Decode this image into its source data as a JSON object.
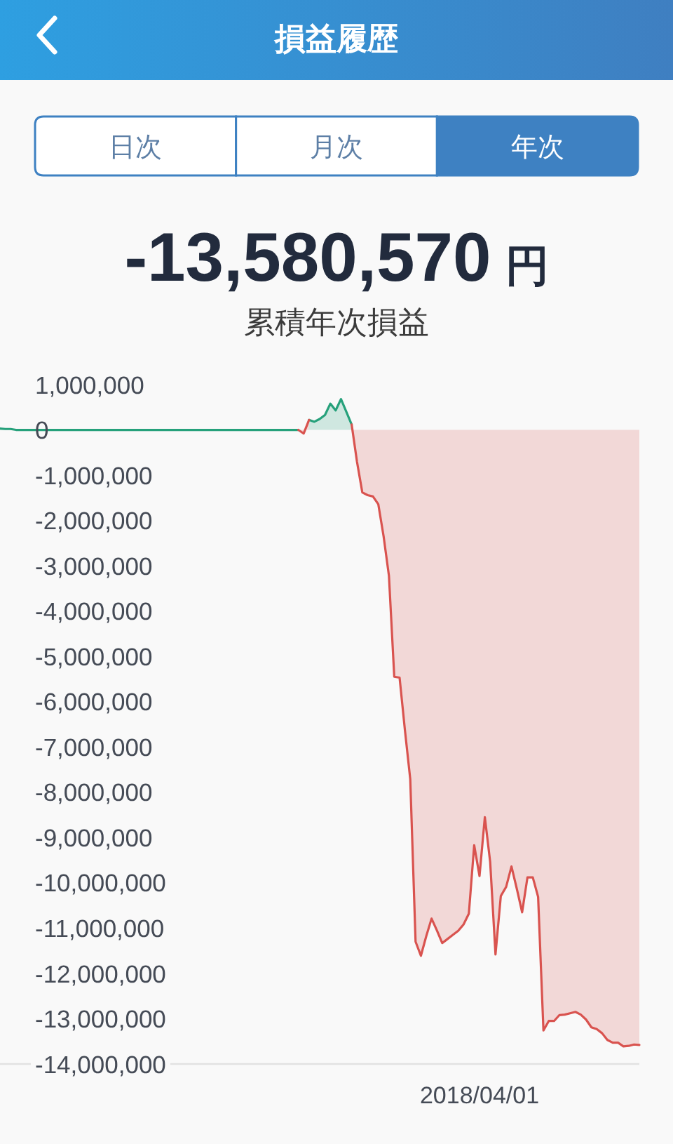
{
  "chart_data": {
    "type": "area",
    "title": "損益履歴",
    "subtitle": "累積年次損益",
    "annotations": [
      "日次",
      "月次",
      "年次",
      "-13,580,570",
      "円"
    ],
    "categories": [
      null,
      null,
      null,
      null,
      null,
      null,
      null,
      null,
      null,
      null,
      null,
      null,
      null,
      null,
      null,
      null,
      null,
      null,
      null,
      null,
      null,
      null,
      null,
      null,
      null,
      null,
      null,
      null,
      null,
      null,
      null,
      null,
      null,
      null,
      null,
      null,
      null,
      null,
      null,
      null,
      null,
      null,
      null,
      null,
      null,
      null,
      null,
      null,
      null,
      null,
      null,
      null,
      null,
      null,
      null,
      null,
      null,
      null,
      null,
      null,
      null,
      null,
      null,
      null,
      null,
      null,
      null,
      null,
      null,
      null,
      null,
      null,
      null,
      null,
      null,
      null,
      null,
      null,
      null,
      null,
      null,
      null,
      null,
      null,
      null,
      null,
      null,
      null,
      null,
      null,
      "2018/04/01",
      null,
      null,
      null,
      null,
      null,
      null,
      null,
      null,
      null,
      null,
      null,
      null,
      null,
      null,
      null,
      null,
      null,
      null,
      null,
      null,
      null,
      null,
      null,
      null,
      null,
      null,
      null,
      null,
      null,
      null
    ],
    "series": [
      {
        "color": "#26a17b",
        "values": [
          30000,
          20000,
          20000,
          0,
          0,
          0,
          0,
          0,
          0,
          0,
          0,
          0,
          0,
          0,
          0,
          0,
          0,
          0,
          0,
          0,
          0,
          0,
          0,
          0,
          0,
          0,
          0,
          0,
          0,
          0,
          0,
          0,
          0,
          0,
          0,
          0,
          0,
          0,
          0,
          0,
          0,
          0,
          0,
          0,
          0,
          0,
          0,
          0,
          0,
          0,
          0,
          0,
          0,
          0,
          0,
          0,
          0,
          null,
          220000,
          180000,
          240000,
          330000,
          580000,
          430000,
          680000,
          400000,
          120000,
          null,
          null,
          null,
          null,
          null,
          null,
          null,
          null,
          null,
          null,
          null,
          null,
          null,
          null,
          null,
          null,
          null,
          null,
          null,
          null,
          null,
          null,
          null,
          null,
          null,
          null,
          null,
          null,
          null,
          null,
          null,
          null,
          null,
          null,
          null,
          null,
          null,
          null,
          null,
          null,
          null,
          null,
          null,
          null,
          null,
          null,
          null,
          null,
          null,
          null,
          null,
          null,
          null,
          null
        ]
      },
      {
        "color": "#d9534f",
        "values": [
          null,
          null,
          null,
          null,
          null,
          null,
          null,
          null,
          null,
          null,
          null,
          null,
          null,
          null,
          null,
          null,
          null,
          null,
          null,
          null,
          null,
          null,
          null,
          null,
          null,
          null,
          null,
          null,
          null,
          null,
          null,
          null,
          null,
          null,
          null,
          null,
          null,
          null,
          null,
          null,
          null,
          null,
          null,
          null,
          null,
          null,
          null,
          null,
          null,
          null,
          null,
          null,
          null,
          null,
          null,
          null,
          0,
          -80000,
          220000,
          null,
          null,
          null,
          null,
          null,
          null,
          null,
          120000,
          -700000,
          -1380000,
          -1440000,
          -1470000,
          -1640000,
          -2350000,
          -3220000,
          -5450000,
          -5470000,
          -6630000,
          -7710000,
          -11300000,
          -11610000,
          -11180000,
          -10790000,
          -11050000,
          -11330000,
          -11240000,
          -11150000,
          -11060000,
          -10920000,
          -10680000,
          -9170000,
          -9850000,
          -8550000,
          -9540000,
          -11580000,
          -10290000,
          -10090000,
          -9640000,
          -10130000,
          -10650000,
          -9880000,
          -9880000,
          -10310000,
          -13260000,
          -13050000,
          -13050000,
          -12920000,
          -12910000,
          -12880000,
          -12850000,
          -12910000,
          -13020000,
          -13190000,
          -13230000,
          -13320000,
          -13470000,
          -13530000,
          -13530000,
          -13610000,
          -13600000,
          -13570000,
          -13580000
        ]
      }
    ],
    "ylim": [
      -14000000,
      1000000
    ],
    "yticks": [
      {
        "value": 1000000,
        "label": "1,000,000"
      },
      0,
      {
        "value": -1000000,
        "label": "-1,000,000"
      },
      {
        "value": -2000000,
        "label": "-2,000,000"
      },
      {
        "value": -3000000,
        "label": "-3,000,000"
      },
      {
        "value": -4000000,
        "label": "-4,000,000"
      },
      {
        "value": -5000000,
        "label": "-5,000,000"
      },
      {
        "value": -6000000,
        "label": "-6,000,000"
      },
      {
        "value": -7000000,
        "label": "-7,000,000"
      },
      {
        "value": -8000000,
        "label": "-8,000,000"
      },
      {
        "value": -9000000,
        "label": "-9,000,000"
      },
      {
        "value": -10000000,
        "label": "-10,000,000"
      },
      {
        "value": -11000000,
        "label": "-11,000,000"
      },
      {
        "value": -12000000,
        "label": "-12,000,000"
      },
      {
        "value": -13000000,
        "label": "-13,000,000"
      },
      {
        "value": -14000000,
        "label": "-14,000,000"
      }
    ]
  }
}
